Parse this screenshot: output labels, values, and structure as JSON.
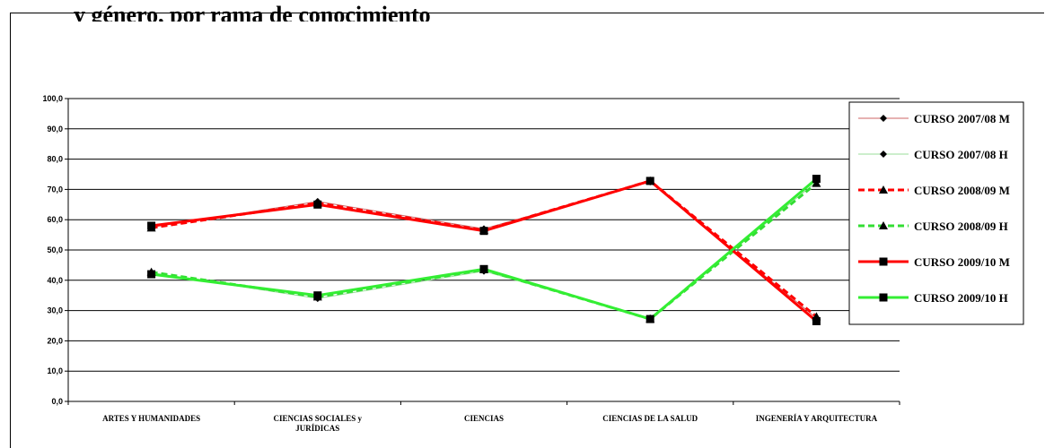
{
  "header": {
    "cut_title": "y género, por rama de conocimiento"
  },
  "chart_data": {
    "type": "line",
    "categories": [
      "ARTES Y HUMANIDADES",
      "CIENCIAS SOCIALES y JURÍDICAS",
      "CIENCIAS",
      "CIENCIAS DE LA SALUD",
      "INGENERÍA Y ARQUITECTURA"
    ],
    "category_lines": [
      [
        "ARTES Y HUMANIDADES"
      ],
      [
        "CIENCIAS SOCIALES y",
        "JURÍDICAS"
      ],
      [
        "CIENCIAS"
      ],
      [
        "CIENCIAS DE LA SALUD"
      ],
      [
        "INGENERÍA Y ARQUITECTURA"
      ]
    ],
    "yticks": [
      "0,0",
      "10,0",
      "20,0",
      "30,0",
      "40,0",
      "50,0",
      "60,0",
      "70,0",
      "80,0",
      "90,0",
      "100,0"
    ],
    "ylim": [
      0,
      100
    ],
    "grid": true,
    "legend_position": "right",
    "title": "",
    "xlabel": "",
    "ylabel": "",
    "series": [
      {
        "name": "CURSO 2007/08 M",
        "values": [
          57.5,
          66.0,
          57.0,
          72.5,
          27.5
        ],
        "color": "#cc6666",
        "width": 1,
        "dash": "",
        "marker": "diamond"
      },
      {
        "name": "CURSO 2007/08 H",
        "values": [
          42.5,
          34.0,
          43.0,
          27.5,
          72.5
        ],
        "color": "#99dd99",
        "width": 1,
        "dash": "",
        "marker": "diamond"
      },
      {
        "name": "CURSO 2008/09 M",
        "values": [
          57.3,
          65.5,
          56.5,
          72.8,
          28.0
        ],
        "color": "#ff0000",
        "width": 3,
        "dash": "7,4",
        "marker": "triangle"
      },
      {
        "name": "CURSO 2008/09 H",
        "values": [
          42.7,
          34.5,
          43.5,
          27.2,
          72.0
        ],
        "color": "#33dd33",
        "width": 3,
        "dash": "7,4",
        "marker": "triangle"
      },
      {
        "name": "CURSO 2009/10 M",
        "values": [
          58.0,
          65.0,
          56.3,
          72.8,
          26.5
        ],
        "color": "#ff0000",
        "width": 3,
        "dash": "",
        "marker": "square"
      },
      {
        "name": "CURSO 2009/10 H",
        "values": [
          42.0,
          35.0,
          43.7,
          27.2,
          73.5
        ],
        "color": "#33ee33",
        "width": 3,
        "dash": "",
        "marker": "square"
      }
    ]
  }
}
